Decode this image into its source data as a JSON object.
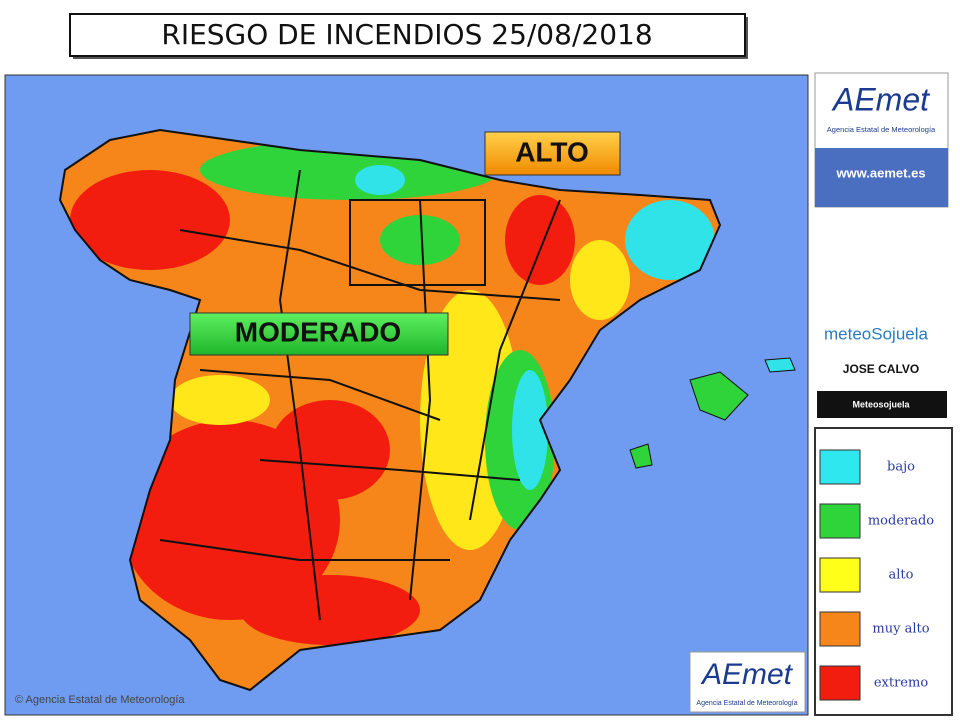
{
  "header": {
    "title": "RIESGO DE INCENDIOS 25/08/2018"
  },
  "map": {
    "callouts": [
      "ALTO",
      "MODERADO"
    ],
    "copyright": "© Agencia Estatal de Meteorología",
    "logo": {
      "name": "AEmet",
      "subtitle": "Agencia Estatal de Meteorología"
    }
  },
  "sidebar": {
    "aemet": {
      "name": "AEmet",
      "subtitle": "Agencia Estatal de Meteorología",
      "url": "www.aemet.es"
    },
    "meteo": {
      "name": "meteoSojuela",
      "author": "JOSE CALVO",
      "social": "Meteosojuela"
    }
  },
  "legend": {
    "items": [
      "bajo",
      "moderado",
      "alto",
      "muy alto",
      "extremo"
    ]
  }
}
